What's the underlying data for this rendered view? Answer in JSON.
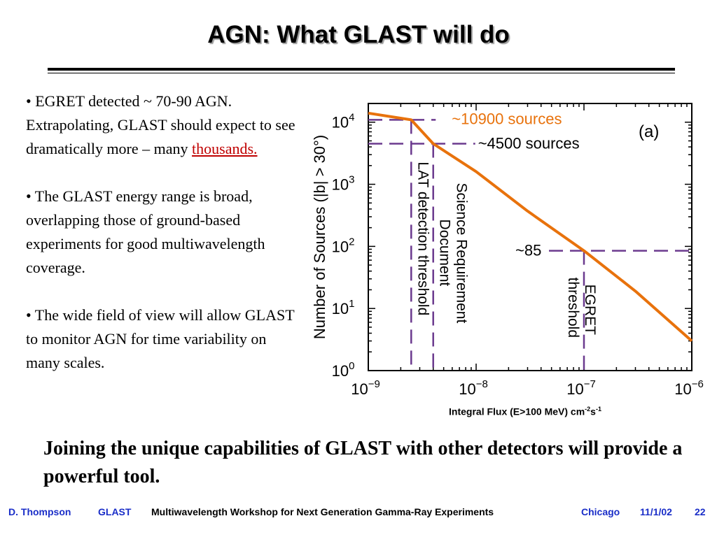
{
  "slide": {
    "title": "AGN: What GLAST will do",
    "bullets": [
      {
        "text": "• EGRET detected ~ 70-90 AGN. Extrapolating, GLAST should expect to see dramatically more – many ",
        "highlight": "thousands."
      },
      {
        "text": "• The GLAST energy range is broad, overlapping those of ground-based experiments for good multiwavelength coverage."
      },
      {
        "text": "• The wide field of view will allow GLAST to monitor AGN for time variability on many scales."
      }
    ],
    "conclusion": "Joining the unique capabilities of GLAST with other detectors will provide a powerful tool.",
    "footer": {
      "author": "D. Thompson",
      "project": "GLAST",
      "event": "Multiwavelength Workshop for Next Generation Gamma-Ray Experiments",
      "location": "Chicago",
      "date": "11/1/02",
      "page": "22"
    },
    "colors": {
      "curve": "#e8720c",
      "guides": "#6b3a8e",
      "footer_blue": "#1a2ec8",
      "highlight": "#c00000"
    }
  },
  "chart_data": {
    "type": "line",
    "xscale": "log",
    "yscale": "log",
    "xlim": [
      1e-09,
      1e-06
    ],
    "ylim": [
      1,
      20000
    ],
    "x_ticks": [
      "10^-9",
      "10^-8",
      "10^-7",
      "10^-6"
    ],
    "y_ticks": [
      "10^0",
      "10^1",
      "10^2",
      "10^3",
      "10^4"
    ],
    "xlabel_main": "Integral Flux (E>100 MeV) cm",
    "xlabel_sup1": "-2",
    "xlabel_mid": "s",
    "xlabel_sup2": "-1",
    "ylabel": "Number of Sources  (|b| > 30°)",
    "panel_label": "(a)",
    "series": [
      {
        "x": [
          1e-09,
          2.5e-09,
          4e-09,
          1e-08,
          3e-08,
          1e-07,
          3e-07,
          1e-06
        ],
        "y": [
          14000,
          10900,
          4500,
          1600,
          370,
          85,
          19,
          3
        ]
      }
    ],
    "thresholds": [
      {
        "x": 2.5e-09,
        "y": 10900,
        "label": "LAT detection threshold",
        "count_label": "~10900 sources"
      },
      {
        "x": 4e-09,
        "y": 4500,
        "label": "Science Requirement Document",
        "count_label": "~4500 sources"
      },
      {
        "x": 1e-07,
        "y": 85,
        "label": "EGRET threshold",
        "count_label": "~85"
      }
    ]
  }
}
